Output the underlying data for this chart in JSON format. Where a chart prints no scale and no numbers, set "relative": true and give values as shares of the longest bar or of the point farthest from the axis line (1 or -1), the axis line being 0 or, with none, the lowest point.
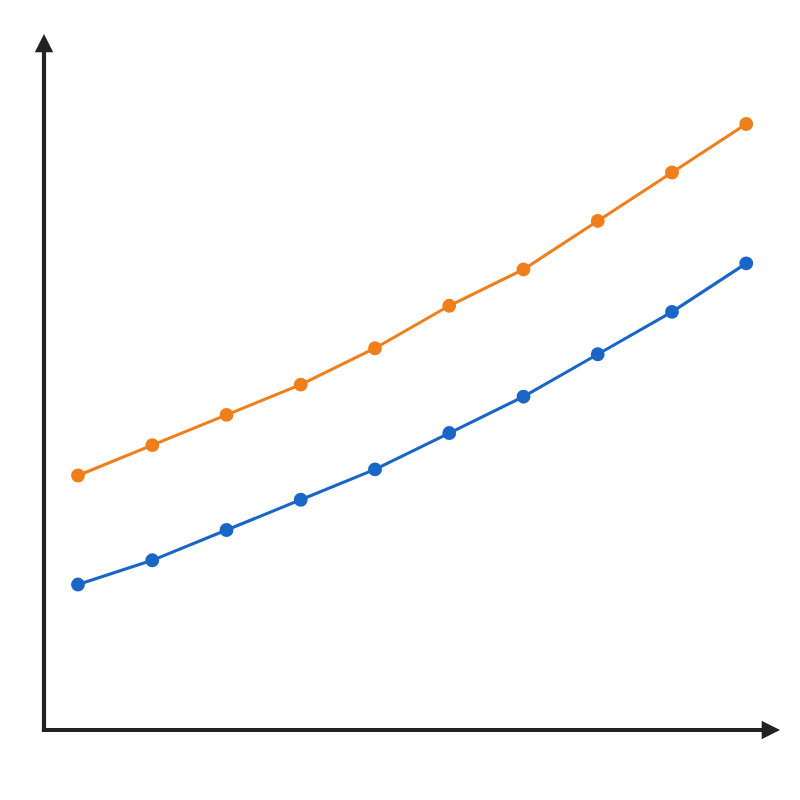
{
  "chart_data": {
    "type": "line",
    "relative": true,
    "categories": [
      null,
      null,
      null,
      null,
      null,
      null,
      null,
      null,
      null,
      null
    ],
    "marker": "circle",
    "line_style": "solid",
    "series": [
      {
        "color": "#ee7f1b",
        "values": [
          0.42,
          0.47,
          0.52,
          0.57,
          0.63,
          0.7,
          0.76,
          0.84,
          0.92,
          1.0
        ]
      },
      {
        "color": "#1a66c6",
        "values": [
          0.24,
          0.28,
          0.33,
          0.38,
          0.43,
          0.49,
          0.55,
          0.62,
          0.69,
          0.77
        ]
      }
    ]
  }
}
